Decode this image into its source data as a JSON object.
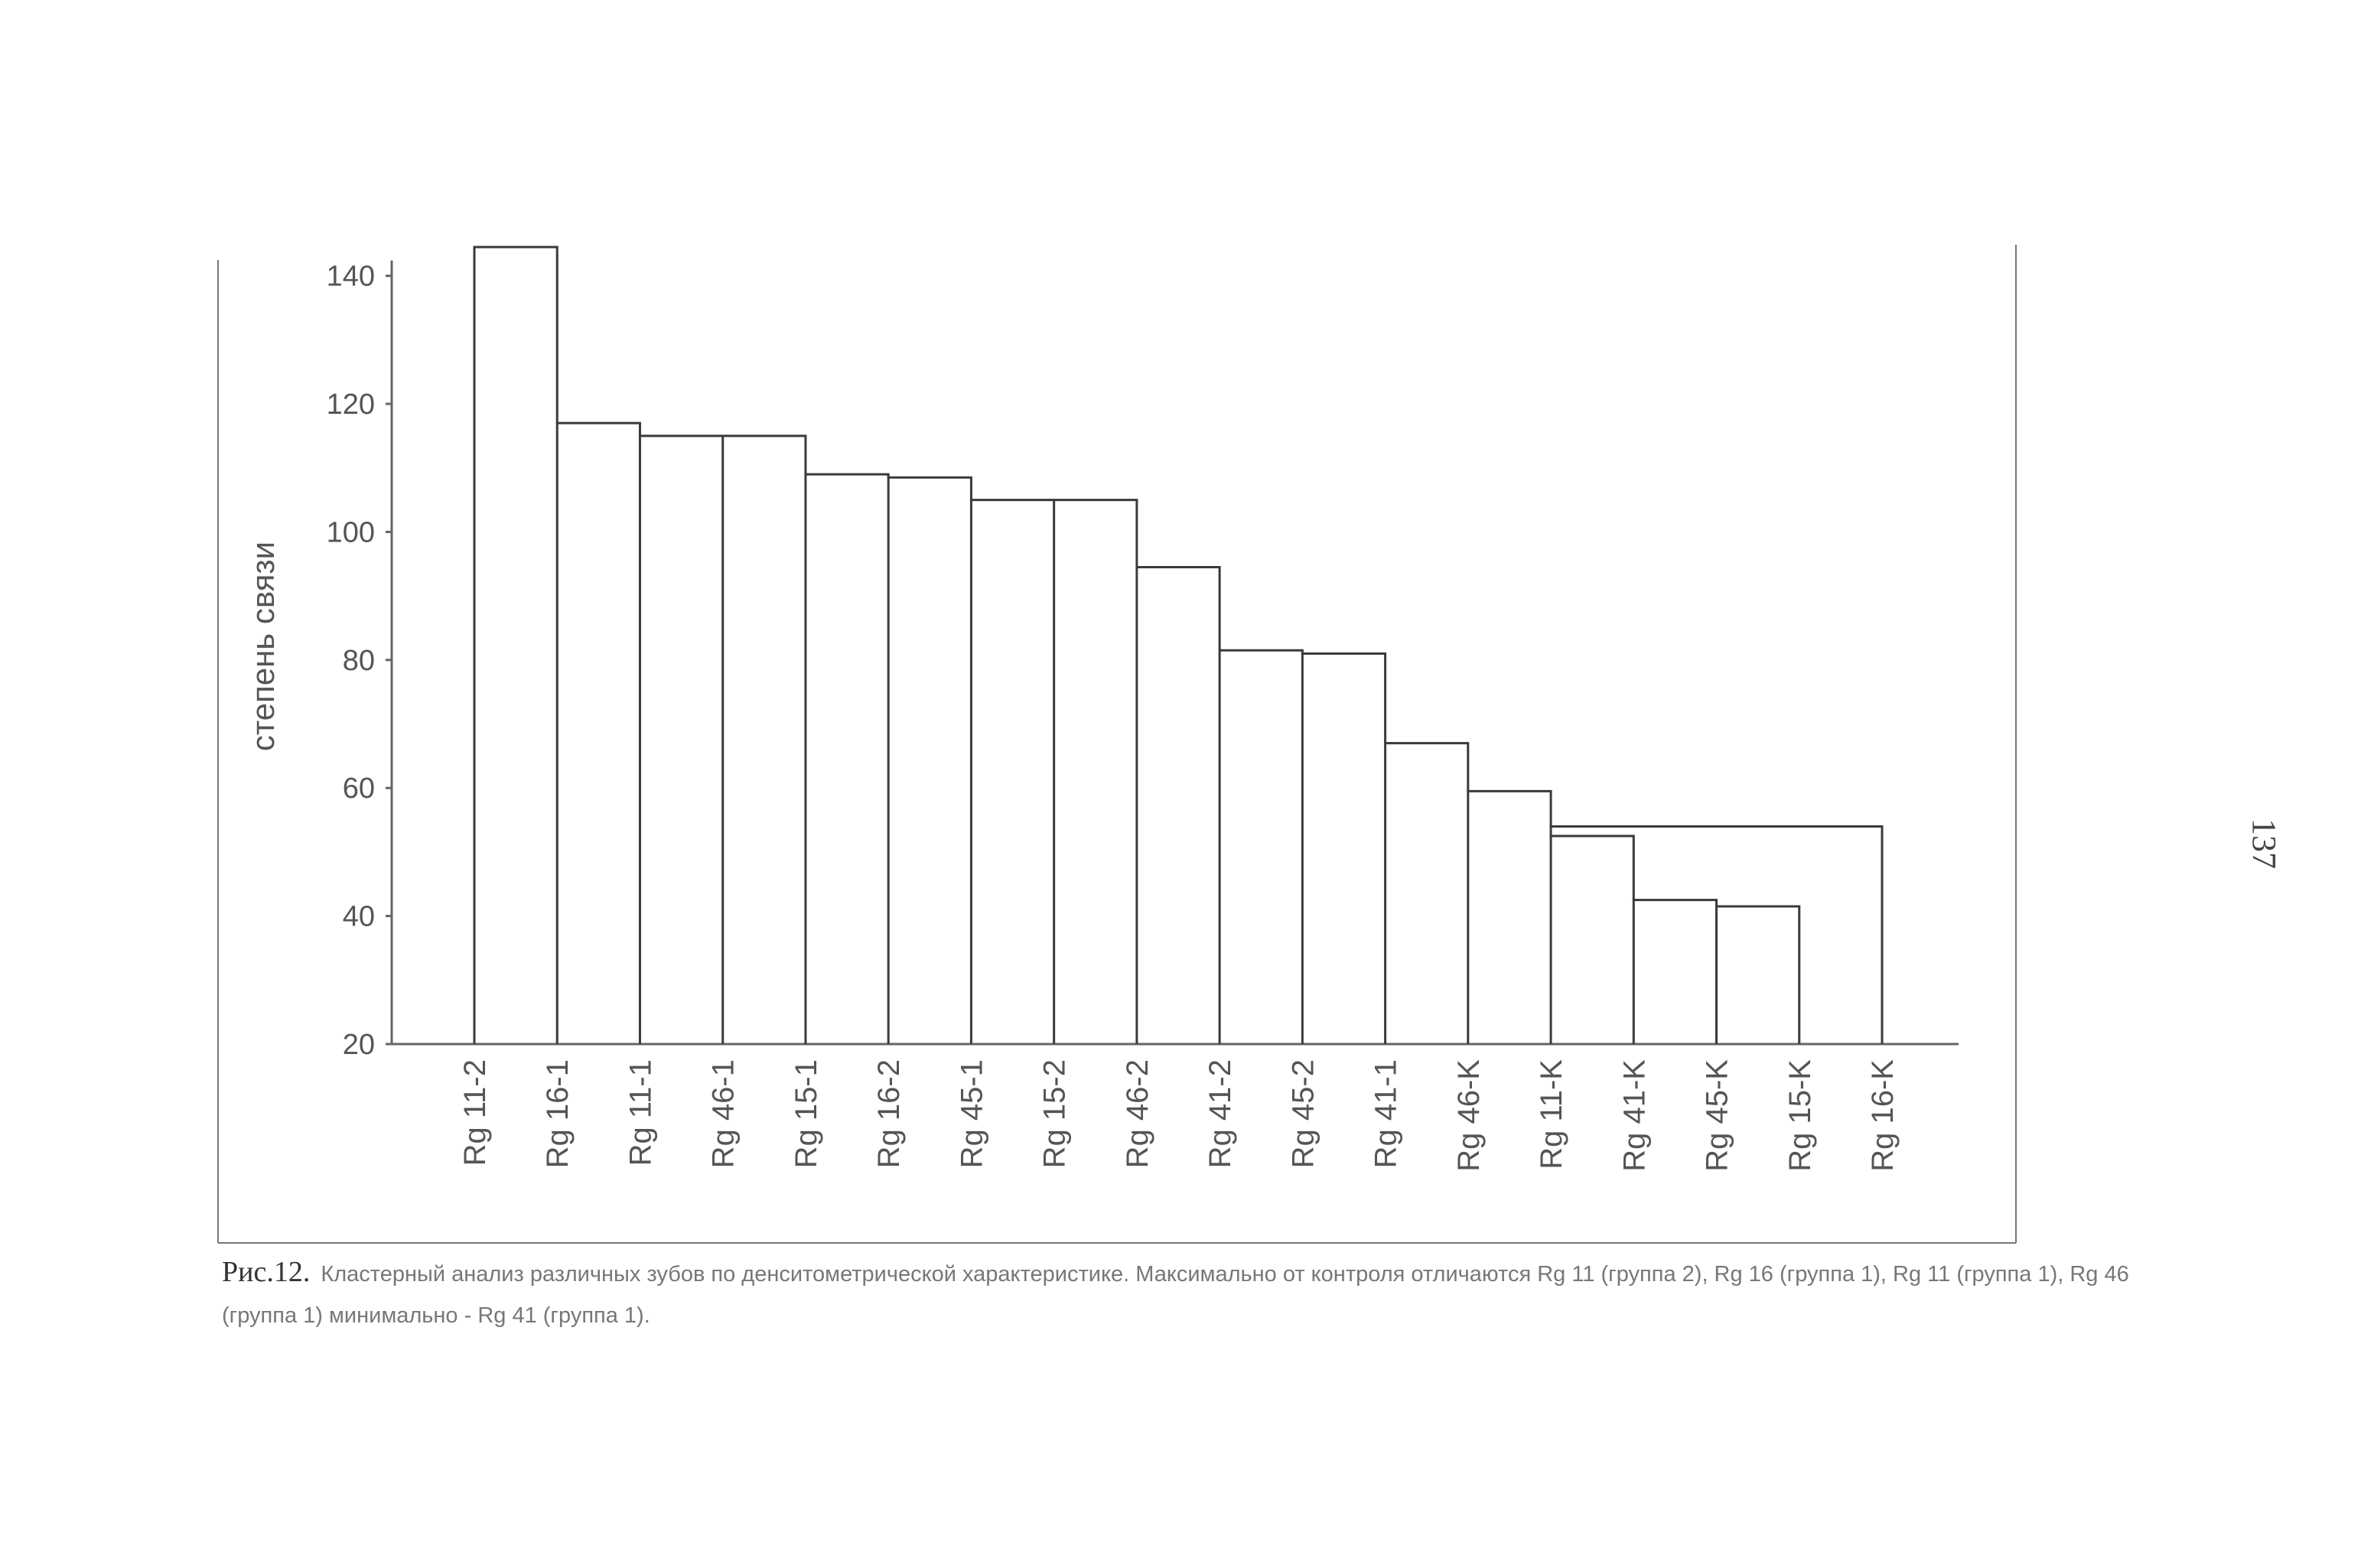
{
  "page_number": "137",
  "caption": {
    "lead": "Рис.12.",
    "text": "Кластерный анализ различных зубов по денситометрической характеристике. Максимально от контроля отличаются Rg 11 (группа 2), Rg 16 (группа 1), Rg 11 (группа 1), Rg 46 (группа 1) минимально  - Rg 41 (группа 1)."
  },
  "chart_data": {
    "type": "dendrogram",
    "ylabel": "степень связи",
    "ylim": [
      20,
      146
    ],
    "yticks": [
      20,
      40,
      60,
      80,
      100,
      120,
      140
    ],
    "leaves": [
      "Rg 11-2",
      "Rg 16-1",
      "Rg 11-1",
      "Rg 46-1",
      "Rg 15-1",
      "Rg 16-2",
      "Rg 45-1",
      "Rg 15-2",
      "Rg 46-2",
      "Rg 41-2",
      "Rg 45-2",
      "Rg 41-1",
      "Rg 46-K",
      "Rg 11-K",
      "Rg 41-K",
      "Rg 45-K",
      "Rg 15-K",
      "Rg 16-K"
    ],
    "links": [
      {
        "a": "Rg 45-K",
        "b": "Rg 15-K",
        "height": 41.5
      },
      {
        "a": "Rg 41-K",
        "b": [
          "Rg 45-K",
          "Rg 15-K"
        ],
        "height": 42.5
      },
      {
        "a": "Rg 11-K",
        "b": [
          "Rg 41-K",
          "Rg 45-K",
          "Rg 15-K"
        ],
        "height": 52.5
      },
      {
        "a": [
          "Rg 11-K",
          "Rg 41-K",
          "Rg 45-K",
          "Rg 15-K"
        ],
        "b": "Rg 16-K",
        "height": 54
      },
      {
        "a": "Rg 46-K",
        "b": [
          "Rg 11-K",
          "Rg 41-K",
          "Rg 45-K",
          "Rg 15-K",
          "Rg 16-K"
        ],
        "height": 59.5
      },
      {
        "a": "Rg 41-1",
        "b": [
          "Rg 46-K",
          "Rg 11-K",
          "Rg 41-K",
          "Rg 45-K",
          "Rg 15-K",
          "Rg 16-K"
        ],
        "height": 67
      },
      {
        "a": "Rg 45-2",
        "b": [
          "Rg 41-1",
          "Rg 46-K",
          "Rg 11-K",
          "Rg 41-K",
          "Rg 45-K",
          "Rg 15-K",
          "Rg 16-K"
        ],
        "height": 81
      },
      {
        "a": "Rg 41-2",
        "b": [
          "Rg 45-2",
          "Rg 41-1",
          "Rg 46-K",
          "Rg 11-K",
          "Rg 41-K",
          "Rg 45-K",
          "Rg 15-K",
          "Rg 16-K"
        ],
        "height": 81.5
      },
      {
        "a": "Rg 46-2",
        "b": [
          "Rg 41-2",
          "Rg 45-2",
          "Rg 41-1",
          "Rg 46-K",
          "Rg 11-K",
          "Rg 41-K",
          "Rg 45-K",
          "Rg 15-K",
          "Rg 16-K"
        ],
        "height": 94.5
      },
      {
        "a": "Rg 15-2",
        "b": [
          "Rg 46-2",
          "Rg 41-2",
          "Rg 45-2",
          "Rg 41-1",
          "Rg 46-K",
          "Rg 11-K",
          "Rg 41-K",
          "Rg 45-K",
          "Rg 15-K",
          "Rg 16-K"
        ],
        "height": 105
      },
      {
        "a": "Rg 45-1",
        "b": [
          "Rg 15-2",
          "Rg 46-2",
          "Rg 41-2",
          "Rg 45-2",
          "Rg 41-1",
          "Rg 46-K",
          "Rg 11-K",
          "Rg 41-K",
          "Rg 45-K",
          "Rg 15-K",
          "Rg 16-K"
        ],
        "height": 105
      },
      {
        "a": "Rg 16-2",
        "b": [
          "Rg 45-1",
          "Rg 15-2",
          "Rg 46-2",
          "Rg 41-2",
          "Rg 45-2",
          "Rg 41-1",
          "Rg 46-K",
          "Rg 11-K",
          "Rg 41-K",
          "Rg 45-K",
          "Rg 15-K",
          "Rg 16-K"
        ],
        "height": 108.5
      },
      {
        "a": "Rg 15-1",
        "b": [
          "Rg 16-2",
          "Rg 45-1",
          "Rg 15-2",
          "Rg 46-2",
          "Rg 41-2",
          "Rg 45-2",
          "Rg 41-1",
          "Rg 46-K",
          "Rg 11-K",
          "Rg 41-K",
          "Rg 45-K",
          "Rg 15-K",
          "Rg 16-K"
        ],
        "height": 109
      },
      {
        "a": "Rg 46-1",
        "b": [
          "Rg 15-1",
          "Rg 16-2",
          "Rg 45-1",
          "Rg 15-2",
          "Rg 46-2",
          "Rg 41-2",
          "Rg 45-2",
          "Rg 41-1",
          "Rg 46-K",
          "Rg 11-K",
          "Rg 41-K",
          "Rg 45-K",
          "Rg 15-K",
          "Rg 16-K"
        ],
        "height": 115
      },
      {
        "a": "Rg 11-1",
        "b": [
          "Rg 46-1",
          "Rg 15-1",
          "Rg 16-2",
          "Rg 45-1",
          "Rg 15-2",
          "Rg 46-2",
          "Rg 41-2",
          "Rg 45-2",
          "Rg 41-1",
          "Rg 46-K",
          "Rg 11-K",
          "Rg 41-K",
          "Rg 45-K",
          "Rg 15-K",
          "Rg 16-K"
        ],
        "height": 115
      },
      {
        "a": "Rg 16-1",
        "b": [
          "Rg 11-1",
          "Rg 46-1",
          "Rg 15-1",
          "Rg 16-2",
          "Rg 45-1",
          "Rg 15-2",
          "Rg 46-2",
          "Rg 41-2",
          "Rg 45-2",
          "Rg 41-1",
          "Rg 46-K",
          "Rg 11-K",
          "Rg 41-K",
          "Rg 45-K",
          "Rg 15-K",
          "Rg 16-K"
        ],
        "height": 117
      },
      {
        "a": "Rg 11-2",
        "b": [
          "Rg 16-1",
          "Rg 11-1",
          "Rg 46-1",
          "Rg 15-1",
          "Rg 16-2",
          "Rg 45-1",
          "Rg 15-2",
          "Rg 46-2",
          "Rg 41-2",
          "Rg 45-2",
          "Rg 41-1",
          "Rg 46-K",
          "Rg 11-K",
          "Rg 41-K",
          "Rg 45-K",
          "Rg 15-K",
          "Rg 16-K"
        ],
        "height": 144.5
      }
    ]
  }
}
